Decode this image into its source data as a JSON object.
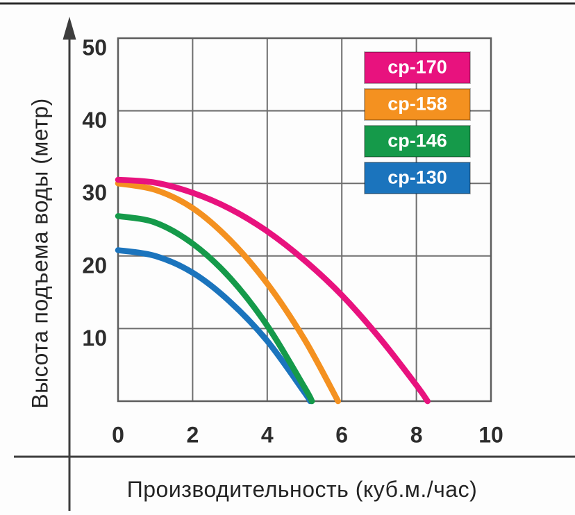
{
  "window": {
    "description_label": "Pump performance curves chart"
  },
  "chart_data": {
    "type": "line",
    "title": "",
    "xlabel": "Производительность (куб.м./час)",
    "ylabel": "Высота подъема воды (метр)",
    "xlim": [
      0,
      10
    ],
    "ylim": [
      0,
      50
    ],
    "x_ticks": [
      "0",
      "2",
      "4",
      "6",
      "8",
      "10"
    ],
    "x_tick_values": [
      0,
      2,
      4,
      6,
      8,
      10
    ],
    "y_ticks": [
      "10",
      "20",
      "30",
      "40",
      "50"
    ],
    "y_tick_values": [
      10,
      20,
      30,
      40,
      50
    ],
    "grid": true,
    "legend_position": "top-right",
    "series": [
      {
        "name": "ср-130",
        "color": "#1b74bd",
        "points": [
          [
            0,
            20.8
          ],
          [
            1,
            20.0
          ],
          [
            2,
            17.7
          ],
          [
            3,
            13.7
          ],
          [
            4,
            8.3
          ],
          [
            5,
            1.2
          ],
          [
            5.15,
            0
          ]
        ]
      },
      {
        "name": "ср-146",
        "color": "#159a4a",
        "points": [
          [
            0,
            25.5
          ],
          [
            1,
            24.6
          ],
          [
            2,
            21.7
          ],
          [
            3,
            17.0
          ],
          [
            4,
            10.4
          ],
          [
            5,
            1.9
          ],
          [
            5.2,
            0
          ]
        ]
      },
      {
        "name": "ср-158",
        "color": "#f49120",
        "points": [
          [
            0,
            30.0
          ],
          [
            1,
            29.1
          ],
          [
            2,
            26.6
          ],
          [
            3,
            22.2
          ],
          [
            4,
            16.2
          ],
          [
            5,
            8.5
          ],
          [
            5.9,
            0
          ]
        ]
      },
      {
        "name": "ср-170",
        "color": "#e8127e",
        "points": [
          [
            0,
            30.5
          ],
          [
            1,
            30.1
          ],
          [
            2,
            28.7
          ],
          [
            3,
            26.5
          ],
          [
            4,
            23.4
          ],
          [
            5,
            19.4
          ],
          [
            6,
            14.6
          ],
          [
            7,
            8.8
          ],
          [
            8,
            2.2
          ],
          [
            8.3,
            0
          ]
        ]
      }
    ],
    "max_head_m": {
      "ср-170": 30.5,
      "ср-158": 30.0,
      "ср-146": 25.5,
      "ср-130": 20.8
    },
    "max_flow_m3h": {
      "ср-170": 8.3,
      "ср-158": 5.9,
      "ср-146": 5.2,
      "ср-130": 5.15
    }
  },
  "legend": {
    "items": [
      {
        "label": "ср-170",
        "color": "#e8127e"
      },
      {
        "label": "ср-158",
        "color": "#f49120"
      },
      {
        "label": "ср-146",
        "color": "#159a4a"
      },
      {
        "label": "ср-130",
        "color": "#1b74bd"
      }
    ]
  },
  "style": {
    "grid_line_color": "#6e6e6e",
    "grid_border_color": "#5d5d5d",
    "axis_line_color": "#3d3d3d",
    "top_frame_color": "#2b2b2b",
    "tick_text_color": "#2d2d2d"
  }
}
